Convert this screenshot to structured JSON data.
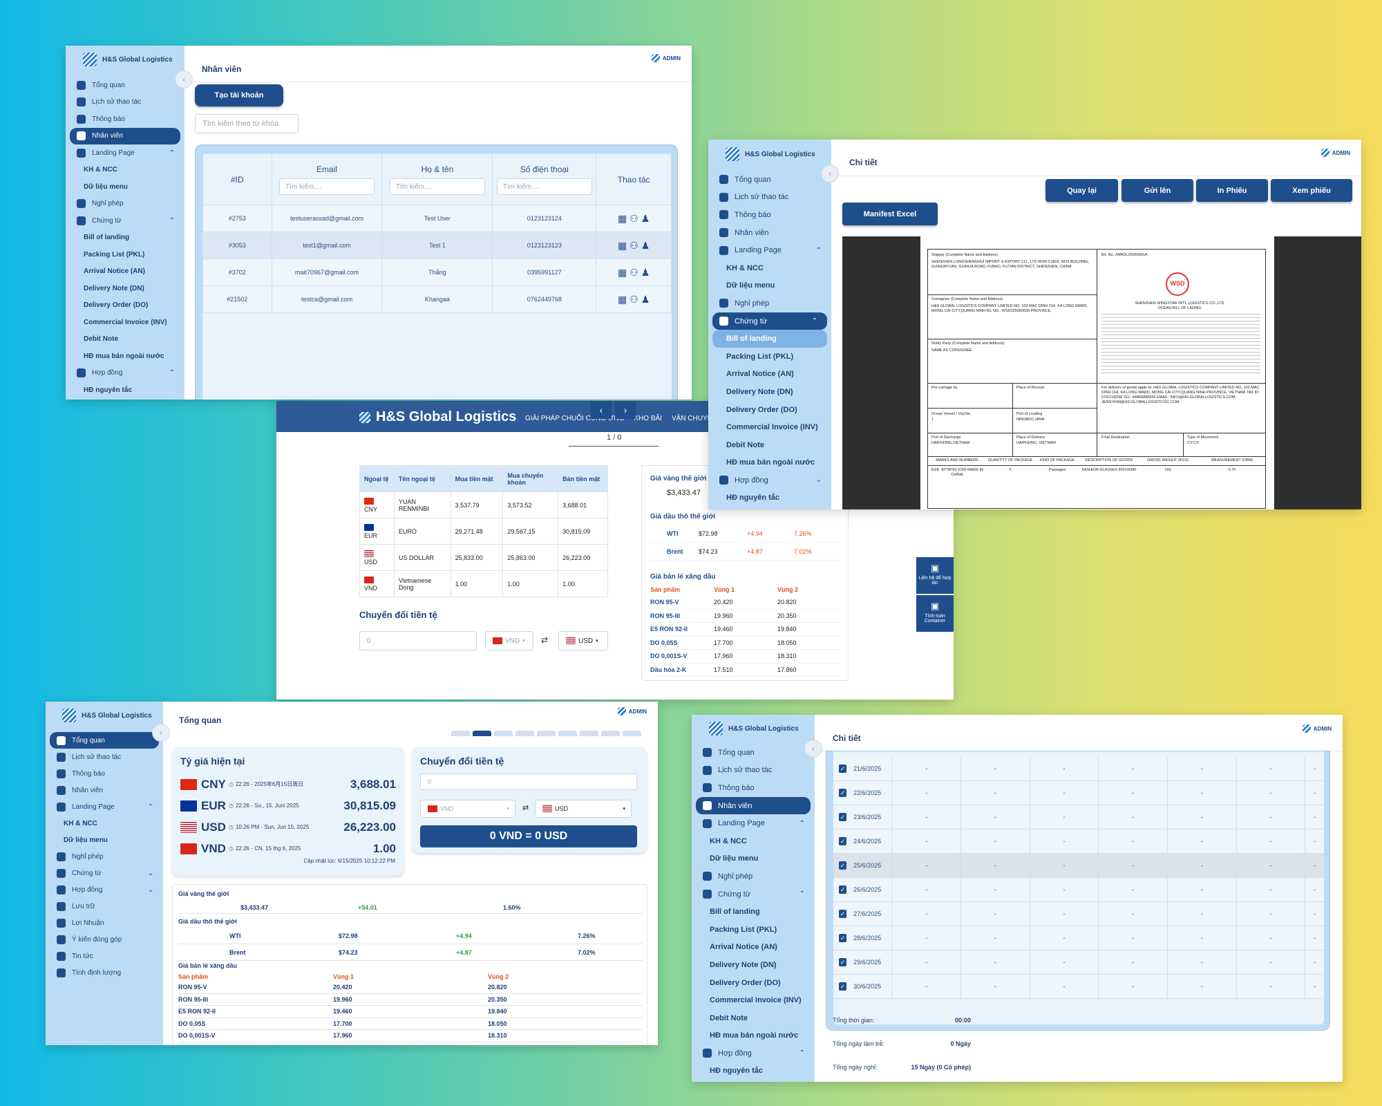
{
  "brand": "H&S Global Logistics",
  "admin": "ADMIN",
  "collapse_glyph": "‹",
  "nav_main": [
    {
      "label": "Tổng quan",
      "icon": "chart-icon"
    },
    {
      "label": "Lịch sử thao tác",
      "icon": "history-icon"
    },
    {
      "label": "Thông báo",
      "icon": "bell-icon"
    },
    {
      "label": "Nhân viên",
      "icon": "users-icon"
    },
    {
      "label": "Landing Page",
      "icon": "globe-icon"
    },
    {
      "label": "KH & NCC",
      "icon": ""
    },
    {
      "label": "Dữ liệu menu",
      "icon": ""
    },
    {
      "label": "Nghỉ phép",
      "icon": "calendar-icon"
    },
    {
      "label": "Chứng từ",
      "icon": "document-icon"
    },
    {
      "label": "Bill of landing",
      "icon": ""
    },
    {
      "label": "Packing List (PKL)",
      "icon": ""
    },
    {
      "label": "Arrival Notice (AN)",
      "icon": ""
    },
    {
      "label": "Delivery Note (DN)",
      "icon": ""
    },
    {
      "label": "Delivery Order (DO)",
      "icon": ""
    },
    {
      "label": "Commercial Invoice (INV)",
      "icon": ""
    },
    {
      "label": "Debit Note",
      "icon": ""
    },
    {
      "label": "HĐ mua bán ngoài nước",
      "icon": ""
    },
    {
      "label": "Hợp đồng",
      "icon": "contract-icon"
    },
    {
      "label": "HĐ nguyên tắc",
      "icon": ""
    },
    {
      "label": "Lưu trữ",
      "icon": "folder-icon"
    }
  ],
  "nav_overview": [
    {
      "label": "Tổng quan",
      "icon": "chart-icon"
    },
    {
      "label": "Lịch sử thao tác",
      "icon": "history-icon"
    },
    {
      "label": "Thông báo",
      "icon": "bell-icon"
    },
    {
      "label": "Nhân viên",
      "icon": "users-icon"
    },
    {
      "label": "Landing Page",
      "icon": "globe-icon"
    },
    {
      "label": "KH & NCC",
      "icon": ""
    },
    {
      "label": "Dữ liệu menu",
      "icon": ""
    },
    {
      "label": "Nghỉ phép",
      "icon": "calendar-icon"
    },
    {
      "label": "Chứng từ",
      "icon": "document-icon"
    },
    {
      "label": "Hợp đồng",
      "icon": "contract-icon"
    },
    {
      "label": "Lưu trữ",
      "icon": "folder-icon"
    },
    {
      "label": "Lợi Nhuận",
      "icon": "dollar-icon"
    },
    {
      "label": "Ý kiến đóng góp",
      "icon": "feedback-icon"
    },
    {
      "label": "Tin tức",
      "icon": "news-icon"
    },
    {
      "label": "Tính định lượng",
      "icon": "calculator-icon"
    }
  ],
  "staff": {
    "title": "Nhân viên",
    "create_button": "Tạo tài khoản",
    "search_placeholder": "Tìm kiếm theo từ khóa",
    "filter_placeholder": "Tìm kiếm....",
    "headers": [
      "#ID",
      "Email",
      "Họ & tên",
      "Số điện thoại",
      "Thao tác"
    ],
    "rows": [
      [
        "#2753",
        "testuserassad@gmail.com",
        "Test User",
        "0123123124"
      ],
      [
        "#3053",
        "test1@gmail.com",
        "Test 1",
        "0123123123"
      ],
      [
        "#3702",
        "mait70967@gmail.com",
        "Thắng",
        "0395991127"
      ],
      [
        "#21502",
        "testca@gmail.com",
        "Khangaa",
        "0762449768"
      ]
    ]
  },
  "landing": {
    "brand": "H&S Global Logistics",
    "menu": [
      "GIẢI PHÁP CHUỖI CUNG ỨNG",
      "KHO BÃI",
      "VẬN CHUYỂN"
    ],
    "pager": "1 / 0",
    "fx_headers": [
      "Ngoại tệ",
      "Tên ngoại tệ",
      "Mua tiền mặt",
      "Mua chuyển khoản",
      "Bán tiền mặt"
    ],
    "fx_rows": [
      {
        "code": "CNY",
        "name": "YUAN RENMINBI",
        "cash": "3,537.79",
        "transfer": "3,573.52",
        "sell": "3,688.01",
        "flag": "f-cn"
      },
      {
        "code": "EUR",
        "name": "EURO",
        "cash": "29,271.48",
        "transfer": "29,567.15",
        "sell": "30,815.09",
        "flag": "f-eu"
      },
      {
        "code": "USD",
        "name": "US DOLLAR",
        "cash": "25,833.00",
        "transfer": "25,863.00",
        "sell": "26,223.00",
        "flag": "f-us"
      },
      {
        "code": "VND",
        "name": "Vietnamese Dong",
        "cash": "1.00",
        "transfer": "1.00",
        "sell": "1.00",
        "flag": "f-vn"
      }
    ],
    "converter_title": "Chuyển đổi tiền tệ",
    "converter_value": "0",
    "from_currency": "VND",
    "to_currency": "USD",
    "gold_title": "Giá vàng thế giới",
    "gold_value": "$3,433.47",
    "oil_title": "Giá dầu thô thế giới",
    "oil_rows": [
      [
        "WTI",
        "$72.98",
        "+4.94",
        "7.26%"
      ],
      [
        "Brent",
        "$74.23",
        "+4.87",
        "7.02%"
      ]
    ],
    "fuel_title": "Giá bán lẻ xăng dầu",
    "fuel_headers": [
      "Sản phẩm",
      "Vùng 1",
      "Vùng 2"
    ],
    "fuel_rows": [
      [
        "RON 95-V",
        "20.420",
        "20.820"
      ],
      [
        "RON 95-III",
        "19.960",
        "20.350"
      ],
      [
        "E5 RON 92-II",
        "19.460",
        "19.840"
      ],
      [
        "DO 0,05S",
        "17.700",
        "18.050"
      ],
      [
        "DO 0,001S-V",
        "17.960",
        "18.310"
      ],
      [
        "Dầu hỏa 2-K",
        "17.510",
        "17.860"
      ]
    ],
    "side_buttons": [
      {
        "label": "Liên hệ để hợp tác",
        "icon": "contact-card-icon"
      },
      {
        "label": "Tính toán Container",
        "icon": "container-icon"
      }
    ]
  },
  "detail": {
    "title": "Chi tiết",
    "buttons": [
      "Quay lại",
      "Gửi lên",
      "In Phiếu",
      "Xem phiếu"
    ],
    "manifest_button": "Manifest Excel",
    "doc": {
      "shipper_label": "Shipper (Complete Name and Address)",
      "shipper": "SHENZHEN LONGSHENGHUI IMPORT & EXPORT CO., LTD ROM C1802, NO3 BUILDING, GUIHUAYUAN, GUIHUA ROAD, FUBAO, FUTIAN DISTRICT, SHENZHEN, CHINA",
      "bl_no": "B/L No.:JWAOL25050681A",
      "consignee_label": "Consignee (Complete Name and Address)",
      "consignee": "H&S GLOBAL LOGISTICS COMPANY LIMITED NO. 102 MAC DINH CHI, KA LONG WARD, MONG CAI CITY,QUANG NINH B/L NO.: WSD025060039 PROVINCE,",
      "carrier": "SHENZHEN WINGSTAR INT'L LOGISTICS CO.,LTD OCEAN BILL OF LADING",
      "notify_label": "Notify Party (Complete Name and Address)",
      "notify": "SAME AS CONSIGNEE",
      "precarriage": "Pre-carriage by",
      "receipt": "Place of Receipt",
      "vessel": "Ocean Vessel / Voy.No.",
      "vessel_no": "1",
      "loading": "Port of Loading",
      "loading_val": "NINGBOC,HINA",
      "discharge": "Port of Discharge",
      "discharge_val": "HAIPHONG,VIETNAM",
      "delivery": "Place of Delivery",
      "delivery_val": "HAIPHONG, VIETNAM",
      "final": "Final Destination",
      "movement": "Type of Movement",
      "movement_val": "CY-CY",
      "agent": "For delivery of goods apply to: H&S GLOBAL LOGISTICS COMPANY LIMITED NO. 102 MAC DINH CHI, KA LONG WARD, MONG CAI CITY,QUANG NINH PROVINCE, VIETNAM TAX ID: 5702118298 TEL: 84866889935 EMAIL: INFO@HS-GLOBALLOGISTICS.COM; JENNYKIM@HS-GLOBALLOGISTICSC.COM",
      "headers": [
        "MARKS AND NUMBERS",
        "QUANTITY OF PACKAGE",
        "KIND OF PACKAGE",
        "DESCRIPTION OF GOODS",
        "GROSS WEIGHT (KGS)",
        "MEASUREMENT (CBM)"
      ],
      "row": [
        "SIZE: 82*36*62 (CM) MADE IN CHINA",
        "5",
        "Packages",
        "FASHION GLASSES 9031/9280",
        "165",
        "0.75"
      ],
      "logo": "WSD"
    }
  },
  "overview": {
    "title": "Tổng quan",
    "rates_title": "Tỷ giá hiện tại",
    "rates": [
      {
        "code": "CNY",
        "time": "22:26 - 2025年6月15日周日",
        "value": "3,688.01",
        "flag": "f-cn"
      },
      {
        "code": "EUR",
        "time": "22:26 - So., 15. Juni 2025",
        "value": "30,815.09",
        "flag": "f-eu"
      },
      {
        "code": "USD",
        "time": "10:26 PM - Sun, Jun 15, 2025",
        "value": "26,223.00",
        "flag": "f-us"
      },
      {
        "code": "VND",
        "time": "22:26 - CN, 15 thg 6, 2025",
        "value": "1.00",
        "flag": "f-vn"
      }
    ],
    "updated": "Cập nhật lúc: 6/15/2025 10:12:22 PM",
    "converter_title": "Chuyển đổi tiền tệ",
    "converter_value": "0",
    "from_currency": "VND",
    "to_currency": "USD",
    "result": "0 VND = 0 USD",
    "gold_title": "Giá vàng thế giới",
    "gold": [
      "$3,433.47",
      "+54.01",
      "1.60%"
    ],
    "oil_title": "Giá dầu thô thế giới",
    "oil_rows": [
      [
        "WTI",
        "$72.98",
        "+4.94",
        "7.26%"
      ],
      [
        "Brent",
        "$74.23",
        "+4.87",
        "7.02%"
      ]
    ],
    "fuel_title": "Giá bán lẻ xăng dầu",
    "fuel_headers": [
      "Sản phẩm",
      "Vùng 1",
      "Vùng 2"
    ],
    "fuel_rows": [
      [
        "RON 95-V",
        "20.420",
        "20.820"
      ],
      [
        "RON 95-III",
        "19.960",
        "20.350"
      ],
      [
        "E5 RON 92-II",
        "19.460",
        "19.840"
      ],
      [
        "DO 0,05S",
        "17.700",
        "18.050"
      ],
      [
        "DO 0,001S-V",
        "17.960",
        "18.310"
      ]
    ]
  },
  "attendance": {
    "title": "Chi tiết",
    "dates": [
      "21/6/2025",
      "22/6/2025",
      "23/6/2025",
      "24/6/2025",
      "25/6/2025",
      "26/6/2025",
      "27/6/2025",
      "28/6/2025",
      "29/6/2025",
      "30/6/2025"
    ],
    "dash": "-",
    "summary": [
      [
        "Tổng thời gian:",
        "00:00"
      ],
      [
        "Tổng ngày làm trễ:",
        "0 Ngày"
      ],
      [
        "Tổng ngày nghỉ:",
        "15 Ngày (0 Có phép)"
      ]
    ]
  }
}
